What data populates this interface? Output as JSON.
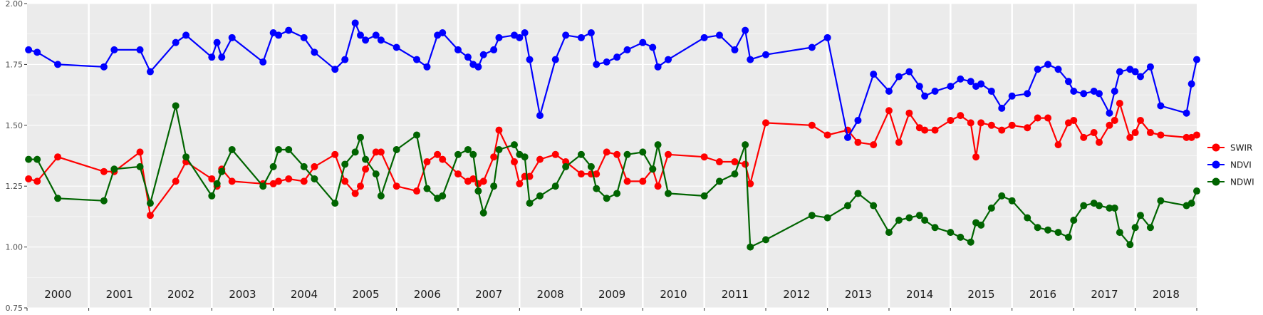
{
  "chart_data": {
    "type": "line",
    "title": "",
    "xlabel": "",
    "ylabel": "",
    "x_range": [
      "2000-01-01",
      "2019-01-01"
    ],
    "ylim": [
      0.75,
      2.0
    ],
    "y_ticks": [
      "0.75",
      "1.00",
      "1.25",
      "1.50",
      "1.75",
      "2.00"
    ],
    "y_tick_values": [
      0.75,
      1.0,
      1.25,
      1.5,
      1.75,
      2.0
    ],
    "year_labels": [
      "2000",
      "2001",
      "2002",
      "2003",
      "2004",
      "2005",
      "2006",
      "2007",
      "2008",
      "2009",
      "2010",
      "2011",
      "2012",
      "2013",
      "2014",
      "2015",
      "2016",
      "2017",
      "2018"
    ],
    "grid": true,
    "background": "#ebebeb",
    "legend_position": "right",
    "series": [
      {
        "name": "SWIR",
        "color": "#ff0000",
        "x": [
          "2000-01-10",
          "2000-03-01",
          "2000-07-01",
          "2001-04-01",
          "2001-06-01",
          "2001-11-01",
          "2002-01-01",
          "2002-06-01",
          "2002-08-01",
          "2003-01-01",
          "2003-02-01",
          "2003-03-01",
          "2003-05-01",
          "2003-11-01",
          "2004-01-01",
          "2004-02-01",
          "2004-04-01",
          "2004-07-01",
          "2004-09-01",
          "2005-01-01",
          "2005-03-01",
          "2005-05-01",
          "2005-06-01",
          "2005-07-01",
          "2005-09-01",
          "2005-10-01",
          "2006-01-01",
          "2006-05-01",
          "2006-07-01",
          "2006-09-01",
          "2006-10-01",
          "2007-01-01",
          "2007-03-01",
          "2007-04-01",
          "2007-05-01",
          "2007-06-01",
          "2007-08-01",
          "2007-09-01",
          "2007-12-01",
          "2008-01-01",
          "2008-02-01",
          "2008-03-01",
          "2008-05-01",
          "2008-08-01",
          "2008-10-01",
          "2009-01-01",
          "2009-03-01",
          "2009-04-01",
          "2009-06-01",
          "2009-08-01",
          "2009-10-01",
          "2010-01-01",
          "2010-03-01",
          "2010-04-01",
          "2010-06-01",
          "2011-01-01",
          "2011-04-01",
          "2011-07-01",
          "2011-09-01",
          "2011-10-01",
          "2012-01-01",
          "2012-10-01",
          "2013-01-01",
          "2013-05-01",
          "2013-07-01",
          "2013-10-01",
          "2014-01-01",
          "2014-03-01",
          "2014-05-01",
          "2014-07-01",
          "2014-08-01",
          "2014-10-01",
          "2015-01-01",
          "2015-03-01",
          "2015-05-01",
          "2015-06-01",
          "2015-07-01",
          "2015-09-01",
          "2015-11-01",
          "2016-01-01",
          "2016-04-01",
          "2016-06-01",
          "2016-08-01",
          "2016-10-01",
          "2016-12-01",
          "2017-01-01",
          "2017-03-01",
          "2017-05-01",
          "2017-06-01",
          "2017-08-01",
          "2017-09-01",
          "2017-10-01",
          "2017-12-01",
          "2018-01-01",
          "2018-02-01",
          "2018-04-01",
          "2018-06-01",
          "2018-11-01",
          "2018-12-01",
          "2019-01-01"
        ],
        "y": [
          1.28,
          1.27,
          1.37,
          1.31,
          1.31,
          1.39,
          1.13,
          1.27,
          1.35,
          1.28,
          1.25,
          1.32,
          1.27,
          1.26,
          1.26,
          1.27,
          1.28,
          1.27,
          1.33,
          1.38,
          1.27,
          1.22,
          1.25,
          1.32,
          1.39,
          1.39,
          1.25,
          1.23,
          1.35,
          1.38,
          1.36,
          1.3,
          1.27,
          1.28,
          1.26,
          1.27,
          1.37,
          1.48,
          1.35,
          1.26,
          1.29,
          1.29,
          1.36,
          1.38,
          1.35,
          1.3,
          1.3,
          1.3,
          1.39,
          1.38,
          1.27,
          1.27,
          1.32,
          1.25,
          1.38,
          1.37,
          1.35,
          1.35,
          1.34,
          1.26,
          1.51,
          1.5,
          1.46,
          1.48,
          1.43,
          1.42,
          1.56,
          1.43,
          1.55,
          1.49,
          1.48,
          1.48,
          1.52,
          1.54,
          1.51,
          1.37,
          1.51,
          1.5,
          1.48,
          1.5,
          1.49,
          1.53,
          1.53,
          1.42,
          1.51,
          1.52,
          1.45,
          1.47,
          1.43,
          1.5,
          1.52,
          1.59,
          1.45,
          1.47,
          1.52,
          1.47,
          1.46,
          1.45,
          1.45,
          1.46
        ]
      },
      {
        "name": "NDVI",
        "color": "#0000ff",
        "x": [
          "2000-01-10",
          "2000-03-01",
          "2000-07-01",
          "2001-04-01",
          "2001-06-01",
          "2001-11-01",
          "2002-01-01",
          "2002-06-01",
          "2002-08-01",
          "2003-01-01",
          "2003-02-01",
          "2003-03-01",
          "2003-05-01",
          "2003-11-01",
          "2004-01-01",
          "2004-02-01",
          "2004-04-01",
          "2004-07-01",
          "2004-09-01",
          "2005-01-01",
          "2005-03-01",
          "2005-05-01",
          "2005-06-01",
          "2005-07-01",
          "2005-09-01",
          "2005-10-01",
          "2006-01-01",
          "2006-05-01",
          "2006-07-01",
          "2006-09-01",
          "2006-10-01",
          "2007-01-01",
          "2007-03-01",
          "2007-04-01",
          "2007-05-01",
          "2007-06-01",
          "2007-08-01",
          "2007-09-01",
          "2007-12-01",
          "2008-01-01",
          "2008-02-01",
          "2008-03-01",
          "2008-05-01",
          "2008-08-01",
          "2008-10-01",
          "2009-01-01",
          "2009-03-01",
          "2009-04-01",
          "2009-06-01",
          "2009-08-01",
          "2009-10-01",
          "2010-01-01",
          "2010-03-01",
          "2010-04-01",
          "2010-06-01",
          "2011-01-01",
          "2011-04-01",
          "2011-07-01",
          "2011-09-01",
          "2011-10-01",
          "2012-01-01",
          "2012-10-01",
          "2013-01-01",
          "2013-05-01",
          "2013-07-01",
          "2013-10-01",
          "2014-01-01",
          "2014-03-01",
          "2014-05-01",
          "2014-07-01",
          "2014-08-01",
          "2014-10-01",
          "2015-01-01",
          "2015-03-01",
          "2015-05-01",
          "2015-06-01",
          "2015-07-01",
          "2015-09-01",
          "2015-11-01",
          "2016-01-01",
          "2016-04-01",
          "2016-06-01",
          "2016-08-01",
          "2016-10-01",
          "2016-12-01",
          "2017-01-01",
          "2017-03-01",
          "2017-05-01",
          "2017-06-01",
          "2017-08-01",
          "2017-09-01",
          "2017-10-01",
          "2017-12-01",
          "2018-01-01",
          "2018-02-01",
          "2018-04-01",
          "2018-06-01",
          "2018-11-01",
          "2018-12-01",
          "2019-01-01"
        ],
        "y": [
          1.81,
          1.8,
          1.75,
          1.74,
          1.81,
          1.81,
          1.72,
          1.84,
          1.87,
          1.78,
          1.84,
          1.78,
          1.86,
          1.76,
          1.88,
          1.87,
          1.89,
          1.86,
          1.8,
          1.73,
          1.77,
          1.92,
          1.87,
          1.85,
          1.87,
          1.85,
          1.82,
          1.77,
          1.74,
          1.87,
          1.88,
          1.81,
          1.78,
          1.75,
          1.74,
          1.79,
          1.81,
          1.86,
          1.87,
          1.86,
          1.88,
          1.77,
          1.54,
          1.77,
          1.87,
          1.86,
          1.88,
          1.75,
          1.76,
          1.78,
          1.81,
          1.84,
          1.82,
          1.74,
          1.77,
          1.86,
          1.87,
          1.81,
          1.89,
          1.77,
          1.79,
          1.82,
          1.86,
          1.45,
          1.52,
          1.71,
          1.64,
          1.7,
          1.72,
          1.66,
          1.62,
          1.64,
          1.66,
          1.69,
          1.68,
          1.66,
          1.67,
          1.64,
          1.57,
          1.62,
          1.63,
          1.73,
          1.75,
          1.73,
          1.68,
          1.64,
          1.63,
          1.64,
          1.63,
          1.55,
          1.64,
          1.72,
          1.73,
          1.72,
          1.7,
          1.74,
          1.58,
          1.55,
          1.67,
          1.77
        ]
      },
      {
        "name": "NDWI",
        "color": "#006400",
        "x": [
          "2000-01-10",
          "2000-03-01",
          "2000-07-01",
          "2001-04-01",
          "2001-06-01",
          "2001-11-01",
          "2002-01-01",
          "2002-06-01",
          "2002-08-01",
          "2003-01-01",
          "2003-02-01",
          "2003-03-01",
          "2003-05-01",
          "2003-11-01",
          "2004-01-01",
          "2004-02-01",
          "2004-04-01",
          "2004-07-01",
          "2004-09-01",
          "2005-01-01",
          "2005-03-01",
          "2005-05-01",
          "2005-06-01",
          "2005-07-01",
          "2005-09-01",
          "2005-10-01",
          "2006-01-01",
          "2006-05-01",
          "2006-07-01",
          "2006-09-01",
          "2006-10-01",
          "2007-01-01",
          "2007-03-01",
          "2007-04-01",
          "2007-05-01",
          "2007-06-01",
          "2007-08-01",
          "2007-09-01",
          "2007-12-01",
          "2008-01-01",
          "2008-02-01",
          "2008-03-01",
          "2008-05-01",
          "2008-08-01",
          "2008-10-01",
          "2009-01-01",
          "2009-03-01",
          "2009-04-01",
          "2009-06-01",
          "2009-08-01",
          "2009-10-01",
          "2010-01-01",
          "2010-03-01",
          "2010-04-01",
          "2010-06-01",
          "2011-01-01",
          "2011-04-01",
          "2011-07-01",
          "2011-09-01",
          "2011-10-01",
          "2012-01-01",
          "2012-10-01",
          "2013-01-01",
          "2013-05-01",
          "2013-07-01",
          "2013-10-01",
          "2014-01-01",
          "2014-03-01",
          "2014-05-01",
          "2014-07-01",
          "2014-08-01",
          "2014-10-01",
          "2015-01-01",
          "2015-03-01",
          "2015-05-01",
          "2015-06-01",
          "2015-07-01",
          "2015-09-01",
          "2015-11-01",
          "2016-01-01",
          "2016-04-01",
          "2016-06-01",
          "2016-08-01",
          "2016-10-01",
          "2016-12-01",
          "2017-01-01",
          "2017-03-01",
          "2017-05-01",
          "2017-06-01",
          "2017-08-01",
          "2017-09-01",
          "2017-10-01",
          "2017-12-01",
          "2018-01-01",
          "2018-02-01",
          "2018-04-01",
          "2018-06-01",
          "2018-11-01",
          "2018-12-01",
          "2019-01-01"
        ],
        "y": [
          1.36,
          1.36,
          1.2,
          1.19,
          1.32,
          1.33,
          1.18,
          1.58,
          1.37,
          1.21,
          1.26,
          1.31,
          1.4,
          1.25,
          1.33,
          1.4,
          1.4,
          1.33,
          1.28,
          1.18,
          1.34,
          1.39,
          1.45,
          1.36,
          1.3,
          1.21,
          1.4,
          1.46,
          1.24,
          1.2,
          1.21,
          1.38,
          1.4,
          1.38,
          1.23,
          1.14,
          1.25,
          1.4,
          1.42,
          1.38,
          1.37,
          1.18,
          1.21,
          1.25,
          1.33,
          1.38,
          1.33,
          1.24,
          1.2,
          1.22,
          1.38,
          1.39,
          1.32,
          1.42,
          1.22,
          1.21,
          1.27,
          1.3,
          1.42,
          1.0,
          1.03,
          1.13,
          1.12,
          1.17,
          1.22,
          1.17,
          1.06,
          1.11,
          1.12,
          1.13,
          1.11,
          1.08,
          1.06,
          1.04,
          1.02,
          1.1,
          1.09,
          1.16,
          1.21,
          1.19,
          1.12,
          1.08,
          1.07,
          1.06,
          1.04,
          1.11,
          1.17,
          1.18,
          1.17,
          1.16,
          1.16,
          1.06,
          1.01,
          1.08,
          1.13,
          1.08,
          1.19,
          1.17,
          1.18,
          1.23
        ]
      }
    ]
  }
}
